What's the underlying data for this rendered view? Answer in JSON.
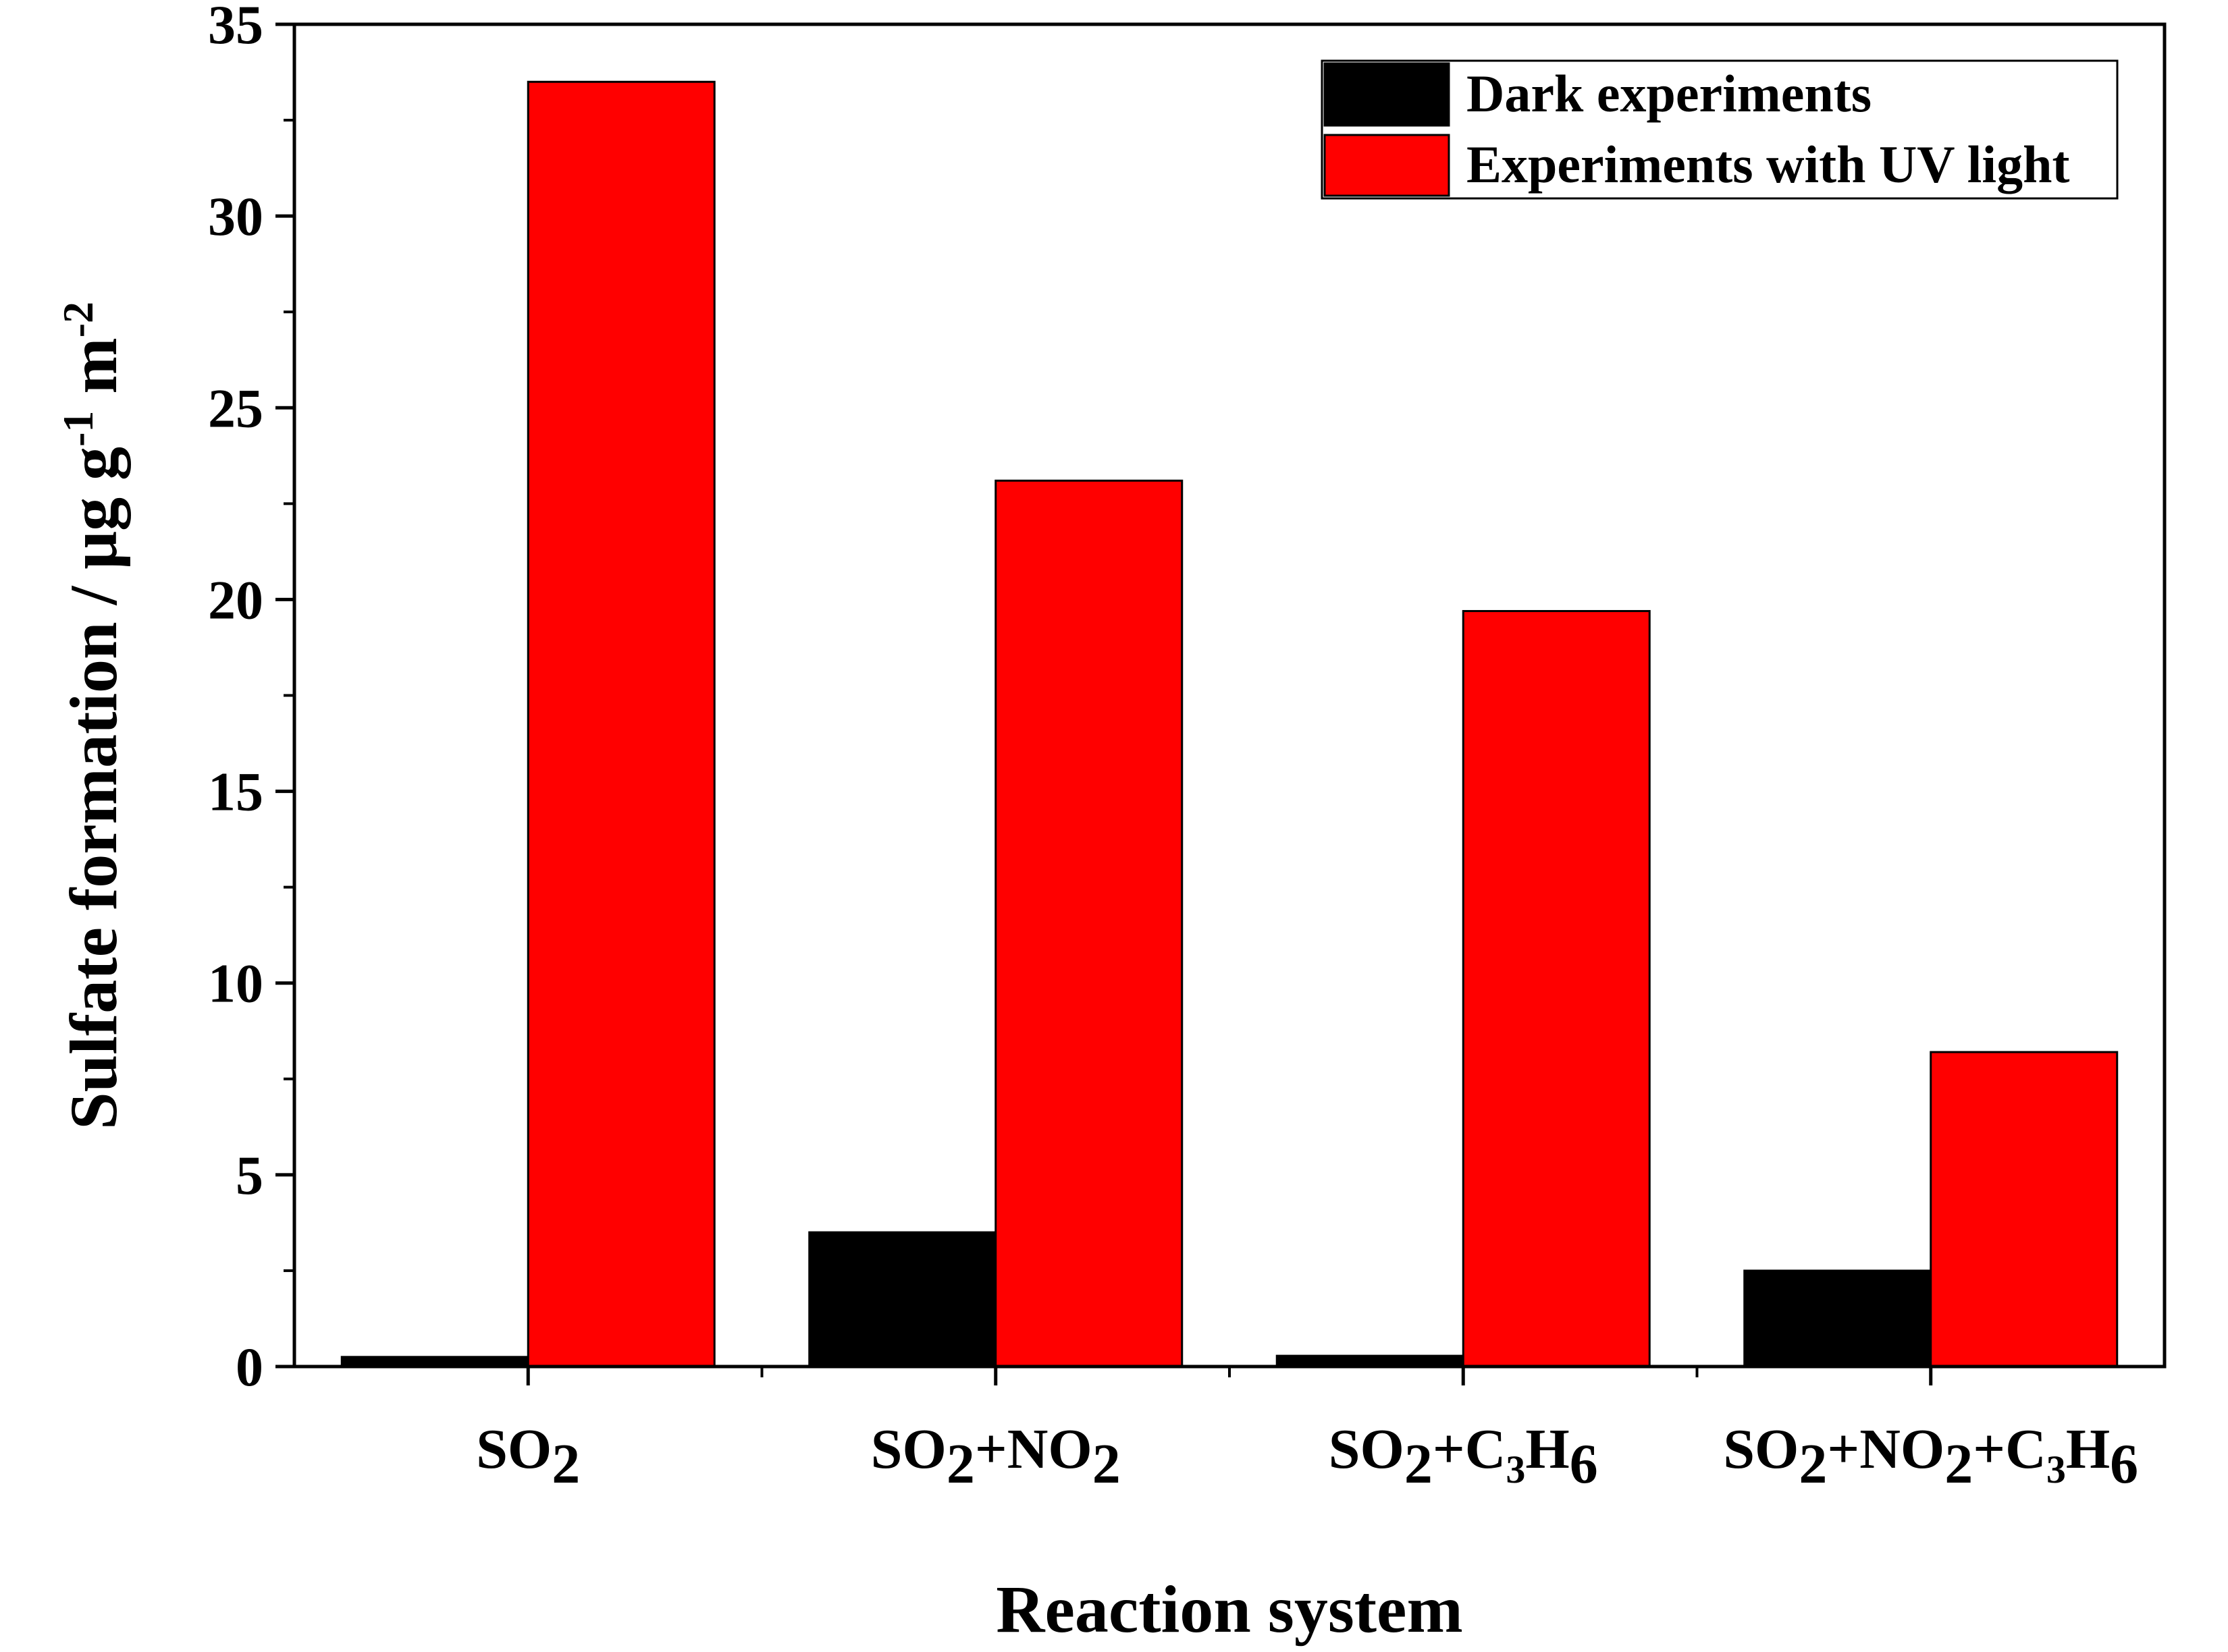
{
  "chart_data": {
    "type": "bar",
    "categories": [
      {
        "base": "SO",
        "parts": [
          {
            "t": "SO",
            "s": "n"
          },
          {
            "t": "2",
            "s": "sub"
          }
        ]
      },
      {
        "base": "SO2+NO2",
        "parts": [
          {
            "t": "SO",
            "s": "n"
          },
          {
            "t": "2",
            "s": "sub"
          },
          {
            "t": "+NO",
            "s": "n"
          },
          {
            "t": "2",
            "s": "sub"
          }
        ]
      },
      {
        "base": "SO2+C3H6",
        "parts": [
          {
            "t": "SO",
            "s": "n"
          },
          {
            "t": "2",
            "s": "sub"
          },
          {
            "t": "+C",
            "s": "n"
          },
          {
            "t": "3",
            "s": "subsmall"
          },
          {
            "t": "H",
            "s": "n"
          },
          {
            "t": "6",
            "s": "sub"
          }
        ]
      },
      {
        "base": "SO2+NO2+C3H6",
        "parts": [
          {
            "t": "SO",
            "s": "n"
          },
          {
            "t": "2",
            "s": "sub"
          },
          {
            "t": "+NO",
            "s": "n"
          },
          {
            "t": "2",
            "s": "sub"
          },
          {
            "t": "+C",
            "s": "n"
          },
          {
            "t": "3",
            "s": "subsmall"
          },
          {
            "t": "H",
            "s": "n"
          },
          {
            "t": "6",
            "s": "sub"
          }
        ]
      }
    ],
    "series": [
      {
        "name": "Dark experiments",
        "color": "#000000",
        "values": [
          0.25,
          3.5,
          0.28,
          2.5
        ]
      },
      {
        "name": "Experiments with UV light",
        "color": "#ff0000",
        "values": [
          33.5,
          23.1,
          19.7,
          8.2
        ]
      }
    ],
    "xlabel": "Reaction system",
    "ylabel": {
      "main": "Sulfate formation / μg g",
      "sup1": "-1",
      "mid": " m",
      "sup2": "-2"
    },
    "ylim": [
      0,
      35
    ],
    "yticks": [
      0,
      5,
      10,
      15,
      20,
      25,
      30,
      35
    ],
    "legend_position": "top-right",
    "grid": false
  }
}
